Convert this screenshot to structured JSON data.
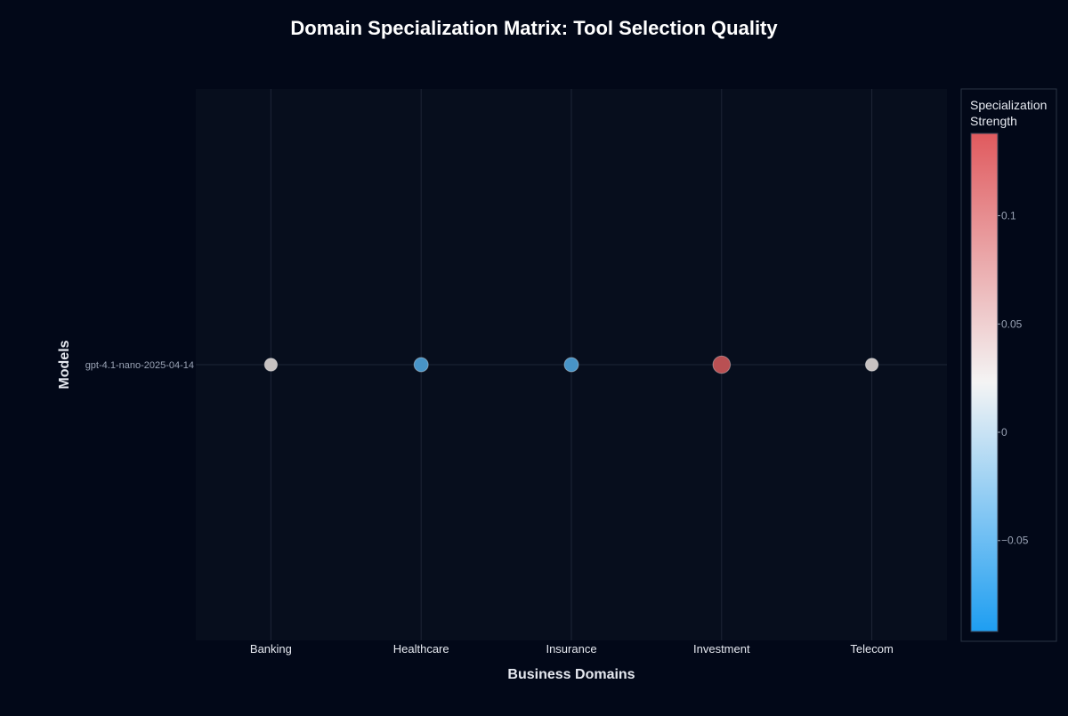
{
  "chart_data": {
    "type": "scatter",
    "title": "Domain Specialization Matrix: Tool Selection Quality",
    "xlabel": "Business Domains",
    "ylabel": "Models",
    "categories": [
      "Banking",
      "Healthcare",
      "Insurance",
      "Investment",
      "Telecom"
    ],
    "models": [
      "gpt-4.1-nano-2025-04-14"
    ],
    "series": [
      {
        "values": [
          0.028,
          -0.061,
          -0.061,
          0.133,
          0.028
        ]
      }
    ],
    "grid": true,
    "colorbar": {
      "title_line1": "Specialization",
      "title_line2": "Strength",
      "ticks": [
        {
          "value": 0.1,
          "label": "0.1"
        },
        {
          "value": 0.05,
          "label": "0.05"
        },
        {
          "value": 0,
          "label": "0"
        },
        {
          "value": -0.05,
          "label": "−0.05"
        }
      ],
      "range": [
        -0.092,
        0.138
      ],
      "colors": {
        "high": "#e05a5e",
        "mid": "#f4f4f4",
        "low": "#1e9ef2"
      }
    },
    "colors": {
      "background": "#020818",
      "plot_background": "#070e1d",
      "grid": "#1e2636",
      "text": "#e6e9f0",
      "tick_text": "#9aa3b5"
    }
  }
}
